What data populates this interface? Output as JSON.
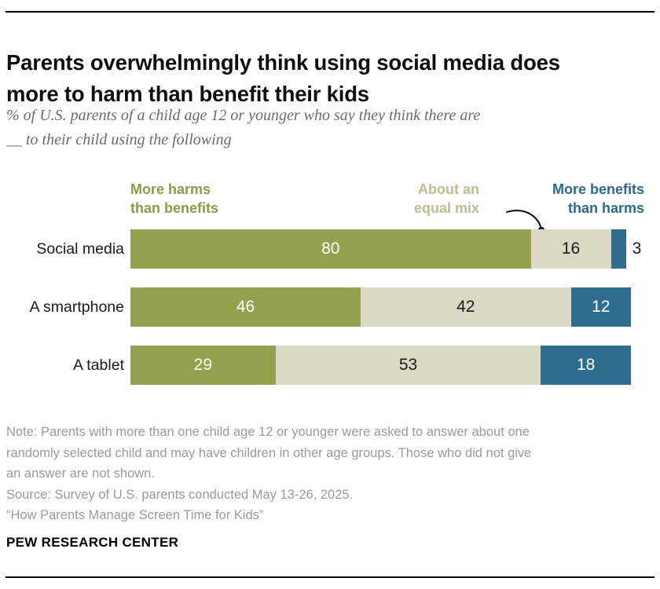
{
  "header": {
    "title_lines": [
      "Parents overwhelmingly think using social media does",
      "more to harm than benefit their kids"
    ],
    "subtitle_lines": [
      "% of U.S. parents of a child age 12 or younger who say they think there are",
      "__ to their child using the following"
    ]
  },
  "chart_data": {
    "type": "bar",
    "orientation": "horizontal",
    "stacked": true,
    "grid": false,
    "legend_position": "top",
    "value_labels": true,
    "xlim": [
      0,
      100
    ],
    "categories": [
      "Social media",
      "A smartphone",
      "A tablet"
    ],
    "series": [
      {
        "name": "More harms than benefits",
        "color": "#94a14e",
        "label_color": "#ffffff",
        "values": [
          80,
          46,
          29
        ]
      },
      {
        "name": "About an equal mix",
        "color": "#dcd8c5",
        "label_color": "#1a1a1a",
        "values": [
          16,
          42,
          53
        ]
      },
      {
        "name": "More benefits than harms",
        "color": "#2e6d8e",
        "label_color": "#ffffff",
        "values": [
          3,
          12,
          18
        ]
      }
    ]
  },
  "legend": {
    "harms": {
      "line1": "More harms",
      "line2": "than benefits",
      "color": "#8d9a47"
    },
    "equal": {
      "line1": "About an",
      "line2": "equal mix",
      "color": "#c4ba92"
    },
    "benefits": {
      "line1": "More benefits",
      "line2": "than harms",
      "color": "#2a6a8e"
    }
  },
  "notes": {
    "note_lines": [
      "Note: Parents with more than one child age 12 or younger were asked to answer about one",
      "randomly selected child and may have children in other age groups. Those who did not give",
      "an answer are not shown."
    ],
    "source": "Source: Survey of U.S. parents conducted May 13-26, 2025.",
    "citation": "“How Parents Manage Screen Time for Kids”"
  },
  "footer": {
    "brand": "PEW RESEARCH CENTER"
  }
}
